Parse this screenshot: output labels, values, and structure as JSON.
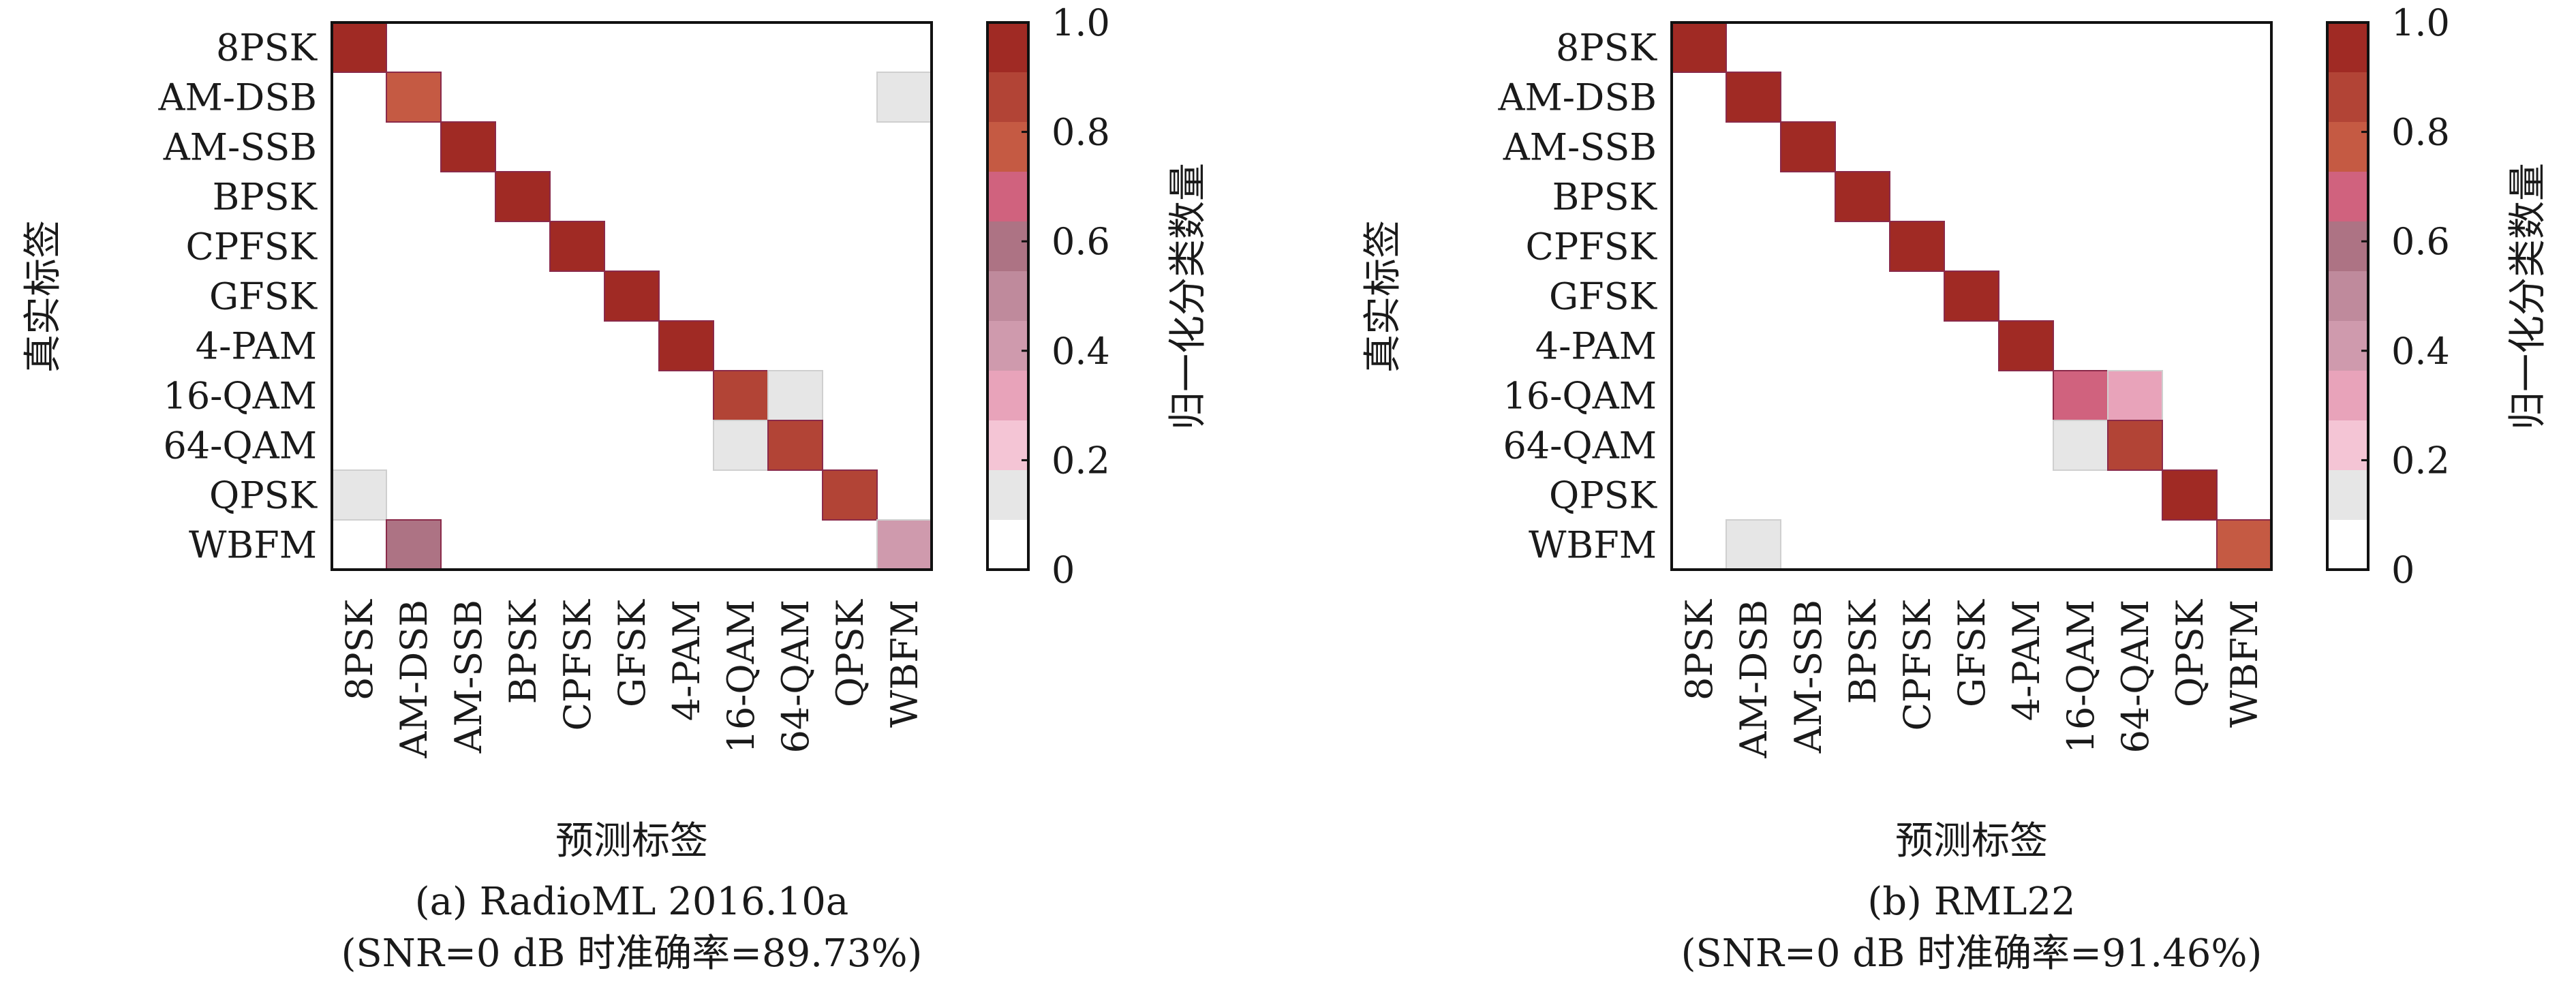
{
  "colorbar": {
    "ticks": [
      "1.0",
      "0.8",
      "0.6",
      "0.4",
      "0.2",
      "0"
    ],
    "stops": [
      "#ffffff",
      "#e6e6e6",
      "#f4c5d5",
      "#e8a3ba",
      "#cf9aad",
      "#bf8a9c",
      "#ad7384",
      "#d0627e",
      "#c55a43",
      "#b24436",
      "#a02a24"
    ]
  },
  "chart_data": [
    {
      "type": "heatmap",
      "categories": [
        "8PSK",
        "AM-DSB",
        "AM-SSB",
        "BPSK",
        "CPFSK",
        "GFSK",
        "4-PAM",
        "16-QAM",
        "64-QAM",
        "QPSK",
        "WBFM"
      ],
      "ylabel": "真实标签",
      "xlabel": "预测标签",
      "colorbar_label": "归一化分类数量",
      "clim": [
        0,
        1
      ],
      "caption_line1": "(a) RadioML 2016.10a",
      "caption_line2": "(SNR=0 dB 时准确率=89.73%)",
      "values": [
        [
          0.97,
          0,
          0,
          0,
          0,
          0,
          0,
          0,
          0,
          0,
          0
        ],
        [
          0,
          0.84,
          0,
          0,
          0,
          0,
          0,
          0,
          0,
          0,
          0.1
        ],
        [
          0,
          0,
          0.97,
          0,
          0,
          0,
          0,
          0,
          0,
          0,
          0
        ],
        [
          0,
          0,
          0,
          0.97,
          0,
          0,
          0,
          0,
          0,
          0,
          0
        ],
        [
          0,
          0,
          0,
          0,
          0.97,
          0,
          0,
          0,
          0,
          0,
          0
        ],
        [
          0,
          0,
          0,
          0,
          0,
          0.97,
          0,
          0,
          0,
          0,
          0
        ],
        [
          0,
          0,
          0,
          0,
          0,
          0,
          0.97,
          0,
          0,
          0,
          0
        ],
        [
          0,
          0,
          0,
          0,
          0,
          0,
          0,
          0.86,
          0.1,
          0,
          0
        ],
        [
          0,
          0,
          0,
          0,
          0,
          0,
          0,
          0.1,
          0.88,
          0,
          0
        ],
        [
          0.1,
          0,
          0,
          0,
          0,
          0,
          0,
          0,
          0,
          0.88,
          0
        ],
        [
          0,
          0.55,
          0,
          0,
          0,
          0,
          0,
          0,
          0,
          0,
          0.4
        ]
      ]
    },
    {
      "type": "heatmap",
      "categories": [
        "8PSK",
        "AM-DSB",
        "AM-SSB",
        "BPSK",
        "CPFSK",
        "GFSK",
        "4-PAM",
        "16-QAM",
        "64-QAM",
        "QPSK",
        "WBFM"
      ],
      "ylabel": "真实标签",
      "xlabel": "预测标签",
      "colorbar_label": "归一化分类数量",
      "clim": [
        0,
        1
      ],
      "caption_line1": "(b) RML22",
      "caption_line2": "(SNR=0 dB 时准确率=91.46%)",
      "values": [
        [
          0.97,
          0,
          0,
          0,
          0,
          0,
          0,
          0,
          0,
          0,
          0
        ],
        [
          0,
          0.97,
          0,
          0,
          0,
          0,
          0,
          0,
          0,
          0,
          0
        ],
        [
          0,
          0,
          0.97,
          0,
          0,
          0,
          0,
          0,
          0,
          0,
          0
        ],
        [
          0,
          0,
          0,
          0.97,
          0,
          0,
          0,
          0,
          0,
          0,
          0
        ],
        [
          0,
          0,
          0,
          0,
          0.97,
          0,
          0,
          0,
          0,
          0,
          0
        ],
        [
          0,
          0,
          0,
          0,
          0,
          0.97,
          0,
          0,
          0,
          0,
          0
        ],
        [
          0,
          0,
          0,
          0,
          0,
          0,
          0.97,
          0,
          0,
          0,
          0
        ],
        [
          0,
          0,
          0,
          0,
          0,
          0,
          0,
          0.66,
          0.28,
          0,
          0
        ],
        [
          0,
          0,
          0,
          0,
          0,
          0,
          0,
          0.1,
          0.86,
          0,
          0
        ],
        [
          0,
          0,
          0,
          0,
          0,
          0,
          0,
          0,
          0,
          0.97,
          0
        ],
        [
          0,
          0.1,
          0,
          0,
          0,
          0,
          0,
          0,
          0,
          0,
          0.75
        ]
      ]
    }
  ]
}
